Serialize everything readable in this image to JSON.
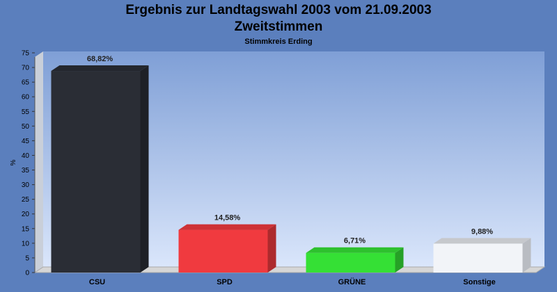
{
  "chart_data": {
    "type": "bar",
    "title": "Ergebnis zur Landtagswahl 2003 vom 21.09.2003",
    "title_line2": "Zweitstimmen",
    "subtitle": "Stimmkreis Erding",
    "ylabel": "%",
    "xlabel": "",
    "ylim": [
      0,
      75
    ],
    "yticks": [
      "0",
      "5",
      "10",
      "15",
      "20",
      "25",
      "30",
      "35",
      "40",
      "45",
      "50",
      "55",
      "60",
      "65",
      "70",
      "75"
    ],
    "categories": [
      "CSU",
      "SPD",
      "GRÜNE",
      "Sonstige"
    ],
    "values": [
      68.82,
      14.58,
      6.71,
      9.88
    ],
    "value_labels": [
      "68,82%",
      "14,58%",
      "6,71%",
      "9,88%"
    ],
    "colors": [
      "#2a2d35",
      "#f03a3f",
      "#35e035",
      "#f2f4f8"
    ],
    "grid": false,
    "legend": "none"
  }
}
